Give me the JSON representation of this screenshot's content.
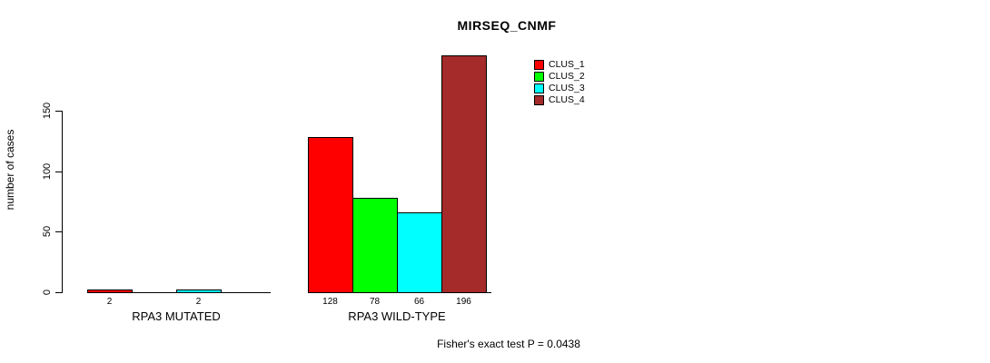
{
  "chart_data": {
    "type": "bar",
    "title": "MIRSEQ_CNMF",
    "ylabel": "number of cases",
    "xlabel": "",
    "yticks": [
      0,
      50,
      100,
      150
    ],
    "ylim": [
      0,
      200
    ],
    "grid": false,
    "legend_position": "top-right",
    "series": [
      {
        "name": "CLUS_1",
        "color": "#FF0000"
      },
      {
        "name": "CLUS_2",
        "color": "#00FF00"
      },
      {
        "name": "CLUS_3",
        "color": "#00FFFF"
      },
      {
        "name": "CLUS_4",
        "color": "#A52A2A"
      }
    ],
    "groups": [
      {
        "label": "RPA3 MUTATED",
        "values": [
          2,
          0,
          2,
          0
        ]
      },
      {
        "label": "RPA3 WILD-TYPE",
        "values": [
          128,
          78,
          66,
          196
        ]
      }
    ],
    "annotation": "Fisher's exact test P = 0.0438"
  }
}
